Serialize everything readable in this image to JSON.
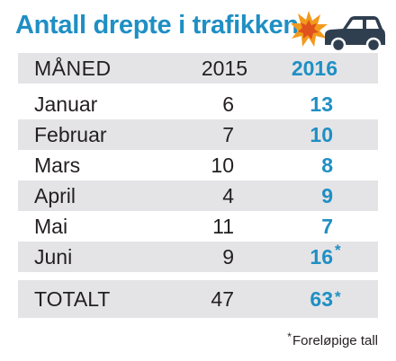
{
  "title": "Antall drepte i trafikken",
  "colors": {
    "accent": "#1f8fc4",
    "text": "#231f20",
    "row_shade": "#e4e4e6",
    "burst_orange": "#f29a1c",
    "burst_red": "#e0521d",
    "car": "#2f3f50"
  },
  "illustration": {
    "icons": [
      "burst-icon",
      "car-icon"
    ]
  },
  "table": {
    "headers": {
      "month": "MÅNED",
      "year_a": "2015",
      "year_b": "2016"
    },
    "rows": [
      {
        "month": "Januar",
        "v2015": "6",
        "v2016": "13",
        "mark": ""
      },
      {
        "month": "Februar",
        "v2015": "7",
        "v2016": "10",
        "mark": ""
      },
      {
        "month": "Mars",
        "v2015": "10",
        "v2016": "8",
        "mark": ""
      },
      {
        "month": "April",
        "v2015": "4",
        "v2016": "9",
        "mark": ""
      },
      {
        "month": "Mai",
        "v2015": "11",
        "v2016": "7",
        "mark": ""
      },
      {
        "month": "Juni",
        "v2015": "9",
        "v2016": "16",
        "mark": "*"
      }
    ],
    "total": {
      "month": "TOTALT",
      "v2015": "47",
      "v2016": "63",
      "mark": "*"
    }
  },
  "footnote": {
    "mark": "*",
    "text": "Foreløpige tall"
  }
}
